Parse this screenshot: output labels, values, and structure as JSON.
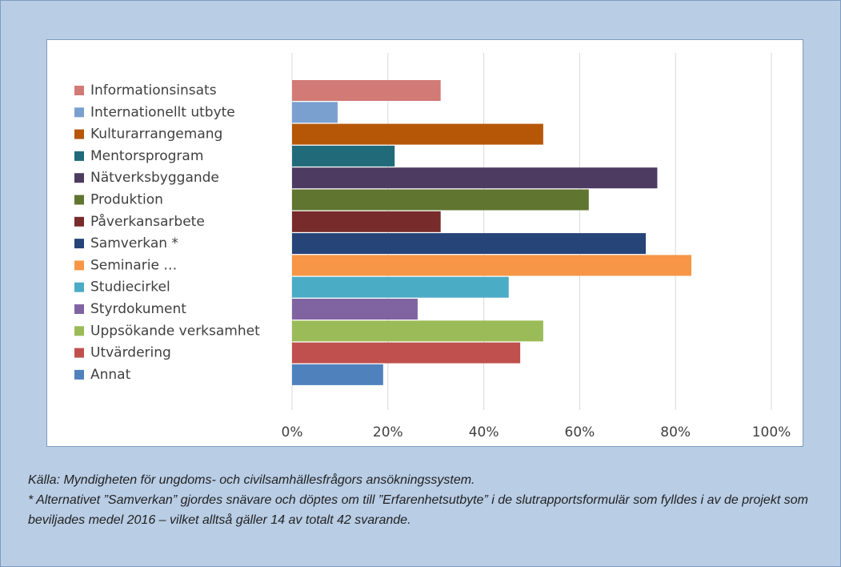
{
  "chart_data": {
    "type": "bar",
    "categories": [
      "Informationsinsats",
      "Internationellt utbyte",
      "Kulturarrangemang",
      "Mentorsprogram",
      "Nätverksbyggande",
      "Produktion",
      "Påverkansarbete",
      "Samverkan *",
      "Seminarie …",
      "Studiecirkel",
      "Styrdokument",
      "Uppsökande verksamhet",
      "Utvärdering",
      "Annat"
    ],
    "values": [
      31.0,
      9.5,
      52.4,
      21.4,
      76.2,
      61.9,
      31.0,
      73.8,
      83.3,
      45.2,
      26.2,
      52.4,
      47.6,
      19.0
    ],
    "colors": [
      "#d27a76",
      "#7aa0d0",
      "#b65708",
      "#216a79",
      "#4e3b62",
      "#5f7530",
      "#782b2b",
      "#264478",
      "#f79646",
      "#4bacc6",
      "#8064a2",
      "#9bbb59",
      "#c0504d",
      "#4f81bd"
    ],
    "xlim": [
      0,
      100
    ],
    "xticks": [
      {
        "value": 0,
        "label": "0%"
      },
      {
        "value": 20,
        "label": "20%"
      },
      {
        "value": 40,
        "label": "40%"
      },
      {
        "value": 60,
        "label": "60%"
      },
      {
        "value": 80,
        "label": "80%"
      },
      {
        "value": 100,
        "label": "100%"
      }
    ],
    "grid": true,
    "source": "Källa: Myndigheten för ungdoms- och civilsamhällesfrågors ansökningssystem.",
    "note": "* Alternativet ”Samverkan” gjordes snävare och döptes om till ”Erfarenhetsutbyte” i de slutrapportsformulär som fylldes i av de projekt som beviljades medel 2016  – vilket alltså gäller 14 av totalt 42 svarande."
  }
}
